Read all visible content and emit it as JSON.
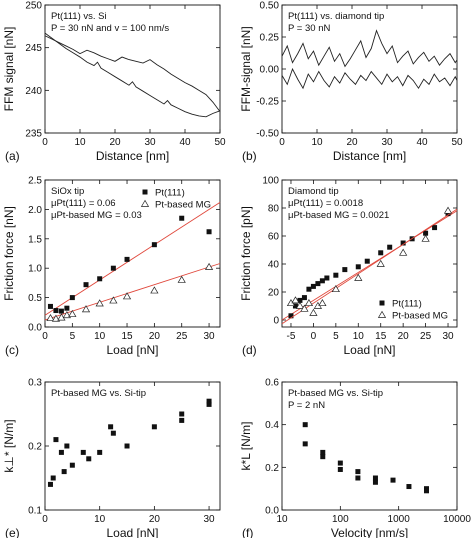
{
  "chart_data": [
    {
      "id": "a",
      "type": "line",
      "panel_label": "(a)",
      "xlabel": "Distance [nm]",
      "ylabel": "FFM signal [nN]",
      "xlim": [
        0,
        50
      ],
      "ylim": [
        235,
        250
      ],
      "xticks": [
        0,
        10,
        20,
        30,
        40,
        50
      ],
      "yticks": [
        235,
        240,
        245,
        250
      ],
      "annotations": [
        "Pt(111) vs. Si",
        "P = 30 nN and v = 100 nm/s"
      ],
      "series": [
        {
          "x": [
            0,
            2,
            4,
            6,
            8,
            10,
            12,
            14,
            15,
            16,
            18,
            20,
            22,
            24,
            25,
            26,
            28,
            30,
            32,
            34,
            35,
            36,
            38,
            40,
            42,
            44,
            46,
            48,
            50
          ],
          "values": [
            246.7,
            246.1,
            245.5,
            244.9,
            244.4,
            243.9,
            243.3,
            242.9,
            243.3,
            242.6,
            242.1,
            241.6,
            241.1,
            240.6,
            241.0,
            240.4,
            239.9,
            239.4,
            238.9,
            238.4,
            238.8,
            238.3,
            237.9,
            237.5,
            237.2,
            237.0,
            236.9,
            237.3,
            237.6
          ]
        },
        {
          "x": [
            0,
            2,
            4,
            6,
            8,
            10,
            12,
            14,
            16,
            18,
            20,
            22,
            24,
            26,
            28,
            30,
            32,
            34,
            36,
            38,
            40,
            42,
            44,
            46,
            48,
            50
          ],
          "values": [
            246.4,
            246.0,
            245.6,
            245.2,
            244.8,
            244.3,
            244.7,
            244.4,
            244.0,
            243.7,
            243.4,
            243.9,
            243.6,
            243.4,
            243.2,
            243.6,
            243.0,
            242.5,
            241.9,
            241.4,
            240.9,
            240.5,
            240.0,
            239.5,
            238.6,
            237.5
          ]
        }
      ]
    },
    {
      "id": "b",
      "type": "line",
      "panel_label": "(b)",
      "xlabel": "Distance [nm]",
      "ylabel": "FFM-signal [nN]",
      "xlim": [
        0,
        50
      ],
      "ylim": [
        -0.5,
        0.5
      ],
      "xticks": [
        0,
        10,
        20,
        30,
        40,
        50
      ],
      "yticks": [
        -0.5,
        -0.25,
        0.0,
        0.25,
        0.5
      ],
      "ytick_labels": [
        "-0.50",
        "-0.25",
        "0.00",
        "0.25",
        "0.50"
      ],
      "annotations": [
        "Pt(111) vs. diamond tip",
        "P = 30 nN"
      ],
      "series": [
        {
          "x": [
            0,
            1.5,
            3,
            4.5,
            6,
            7.5,
            9,
            10.5,
            12,
            13.5,
            15,
            16.5,
            18,
            19.5,
            21,
            22.5,
            24,
            25.5,
            27,
            28.5,
            30,
            31.5,
            33,
            34.5,
            36,
            37.5,
            39,
            40.5,
            42,
            43.5,
            45,
            46.5,
            48,
            49.5,
            50
          ],
          "values": [
            0.1,
            0.18,
            0.05,
            0.12,
            0.2,
            0.08,
            0.14,
            0.03,
            0.1,
            0.17,
            0.06,
            0.12,
            0.02,
            0.08,
            0.15,
            0.22,
            0.09,
            0.16,
            0.3,
            0.2,
            0.12,
            0.18,
            0.05,
            0.1,
            0.14,
            0.04,
            0.09,
            0.13,
            0.06,
            0.1,
            0.03,
            0.08,
            0.12,
            0.05,
            0.07
          ]
        },
        {
          "x": [
            0,
            1.5,
            3,
            4.5,
            6,
            7.5,
            9,
            10.5,
            12,
            13.5,
            15,
            16.5,
            18,
            19.5,
            21,
            22.5,
            24,
            25.5,
            27,
            28.5,
            30,
            31.5,
            33,
            34.5,
            36,
            37.5,
            39,
            40.5,
            42,
            43.5,
            45,
            46.5,
            48,
            49.5,
            50
          ],
          "values": [
            -0.05,
            -0.12,
            0.0,
            -0.08,
            -0.15,
            -0.04,
            -0.1,
            -0.02,
            -0.09,
            -0.14,
            -0.06,
            -0.11,
            -0.03,
            -0.08,
            -0.12,
            -0.05,
            -0.09,
            -0.02,
            -0.07,
            -0.12,
            -0.04,
            -0.1,
            -0.06,
            -0.13,
            -0.05,
            -0.09,
            -0.15,
            -0.08,
            -0.12,
            -0.04,
            -0.1,
            -0.07,
            -0.13,
            -0.06,
            -0.09
          ]
        }
      ]
    },
    {
      "id": "c",
      "type": "scatter",
      "panel_label": "(c)",
      "xlabel": "Load [nN]",
      "ylabel": "Friction force [nN]",
      "xlim": [
        0,
        32
      ],
      "ylim": [
        0,
        2.5
      ],
      "xticks": [
        0,
        5,
        10,
        15,
        20,
        25,
        30
      ],
      "yticks": [
        0.0,
        0.5,
        1.0,
        1.5,
        2.0,
        2.5
      ],
      "ytick_labels": [
        "0.0",
        "0.5",
        "1.0",
        "1.5",
        "2.0",
        "2.5"
      ],
      "annotations": [
        "SiOx tip",
        "μPt(111) = 0.06",
        "μPt-based MG = 0.03"
      ],
      "series": [
        {
          "name": "Pt(111)",
          "marker": "square",
          "x": [
            1,
            2,
            3,
            4,
            5,
            7.5,
            10,
            12.5,
            15,
            20,
            25,
            30
          ],
          "values": [
            0.35,
            0.28,
            0.27,
            0.32,
            0.5,
            0.72,
            0.82,
            1.0,
            1.15,
            1.4,
            1.85,
            1.62
          ],
          "fit": [
            0.2,
            0.06
          ]
        },
        {
          "name": "Pt-based MG",
          "marker": "triangle",
          "x": [
            1,
            2,
            3,
            4,
            5,
            7.5,
            10,
            12.5,
            15,
            20,
            25,
            30
          ],
          "values": [
            0.15,
            0.14,
            0.16,
            0.2,
            0.22,
            0.3,
            0.4,
            0.45,
            0.52,
            0.62,
            0.8,
            1.02
          ],
          "fit": [
            0.12,
            0.03
          ]
        }
      ],
      "legend": "top-right"
    },
    {
      "id": "d",
      "type": "scatter",
      "panel_label": "(d)",
      "xlabel": "Load [nN]",
      "ylabel": "Friction force [pN]",
      "xlim": [
        -7,
        32
      ],
      "ylim": [
        -5,
        100
      ],
      "xticks": [
        -5,
        0,
        5,
        10,
        15,
        20,
        25,
        30
      ],
      "yticks": [
        0,
        20,
        40,
        60,
        80,
        100
      ],
      "annotations": [
        "Diamond tip",
        "μPt(111) = 0.0018",
        "μPt-based MG = 0.0021"
      ],
      "series": [
        {
          "name": "Pt(111)",
          "marker": "square",
          "x": [
            -5,
            -4,
            -3,
            -2,
            -1,
            0,
            1,
            2,
            3,
            5,
            7,
            10,
            12,
            15,
            17,
            20,
            22,
            25,
            27,
            30
          ],
          "values": [
            3,
            10,
            14,
            16,
            22,
            24,
            26,
            28,
            30,
            32,
            36,
            38,
            42,
            48,
            52,
            55,
            58,
            62,
            66,
            76
          ],
          "fit": [
            14,
            2.0
          ]
        },
        {
          "name": "Pt-based MG",
          "marker": "triangle",
          "x": [
            -5,
            -4,
            -3,
            -2,
            -1,
            0,
            1,
            2,
            5,
            10,
            15,
            20,
            25,
            30
          ],
          "values": [
            12,
            14,
            10,
            8,
            12,
            5,
            10,
            12,
            22,
            30,
            40,
            48,
            58,
            78
          ],
          "fit": [
            12,
            2.1
          ]
        }
      ],
      "legend": "bottom-right"
    },
    {
      "id": "e",
      "type": "scatter",
      "panel_label": "(e)",
      "xlabel": "Load [nN]",
      "ylabel": "k⊥* [N/m]",
      "xlim": [
        0,
        32
      ],
      "ylim": [
        0.1,
        0.3
      ],
      "xticks": [
        0,
        10,
        20,
        30
      ],
      "yticks": [
        0.1,
        0.2,
        0.3
      ],
      "ytick_labels": [
        "0.1",
        "0.2",
        "0.3"
      ],
      "annotations": [
        "Pt-based MG vs. Si-tip"
      ],
      "series": [
        {
          "marker": "square",
          "x": [
            1,
            1.5,
            2,
            3,
            3.5,
            4,
            5,
            7,
            8,
            10,
            12,
            12.5,
            15,
            20,
            25,
            25,
            30,
            30
          ],
          "values": [
            0.14,
            0.15,
            0.21,
            0.19,
            0.16,
            0.2,
            0.17,
            0.19,
            0.18,
            0.19,
            0.23,
            0.22,
            0.2,
            0.23,
            0.25,
            0.24,
            0.27,
            0.265
          ]
        }
      ]
    },
    {
      "id": "f",
      "type": "scatter",
      "panel_label": "(f)",
      "xlabel": "Velocity [nm/s]",
      "ylabel": "k*L [N/m]",
      "xscale": "log",
      "xlim": [
        10,
        10000
      ],
      "ylim": [
        0.0,
        0.6
      ],
      "xticks": [
        10,
        100,
        1000,
        10000
      ],
      "yticks": [
        0.0,
        0.2,
        0.4,
        0.6
      ],
      "ytick_labels": [
        "0.0",
        "0.2",
        "0.4",
        "0.6"
      ],
      "annotations": [
        "Pt-based MG vs. Si-tip",
        "P = 2 nN"
      ],
      "series": [
        {
          "marker": "square",
          "x": [
            25,
            25,
            50,
            50,
            100,
            100,
            200,
            200,
            400,
            400,
            800,
            1500,
            3000,
            3000
          ],
          "values": [
            0.4,
            0.31,
            0.27,
            0.25,
            0.22,
            0.19,
            0.18,
            0.15,
            0.15,
            0.13,
            0.14,
            0.11,
            0.1,
            0.09
          ]
        }
      ]
    }
  ]
}
